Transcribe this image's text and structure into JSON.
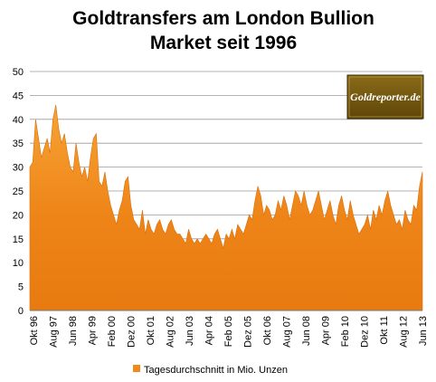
{
  "chart_data": {
    "type": "area",
    "title_line1": "Goldtransfers am London Bullion",
    "title_line2": "Market seit 1996",
    "ylim": [
      0,
      50
    ],
    "y_ticks": [
      "0",
      "5",
      "10",
      "15",
      "20",
      "25",
      "30",
      "35",
      "40",
      "45",
      "50"
    ],
    "x_tick_labels": [
      "Okt 96",
      "Aug 97",
      "Jun 98",
      "Apr 99",
      "Feb 00",
      "Dez 00",
      "Okt 01",
      "Aug 02",
      "Jun 03",
      "Apr 04",
      "Feb 05",
      "Dez 05",
      "Okt 06",
      "Aug 07",
      "Jun 08",
      "Apr 09",
      "Feb 10",
      "Dez 10",
      "Okt 11",
      "Aug 12",
      "Jun 13"
    ],
    "grid": true,
    "legend_position": "bottom",
    "series": [
      {
        "name": "Tagesdurchschnitt in Mio. Unzen",
        "color": "#f08a1c",
        "values": [
          30,
          31,
          40,
          36,
          32,
          34,
          36,
          33,
          40,
          43,
          38,
          35,
          37,
          33,
          30,
          29,
          35,
          31,
          28,
          30,
          27,
          32,
          36,
          37,
          27,
          26,
          29,
          25,
          22,
          20,
          18,
          21,
          23,
          27,
          28,
          22,
          19,
          18,
          17,
          21,
          16,
          19,
          17,
          16,
          18,
          19,
          17,
          16,
          18,
          19,
          17,
          16,
          16,
          15,
          14,
          17,
          15,
          14,
          15,
          14,
          15,
          16,
          15,
          14,
          16,
          17,
          15,
          13,
          16,
          15,
          17,
          15,
          18,
          17,
          16,
          18,
          20,
          19,
          23,
          26,
          24,
          20,
          22,
          21,
          19,
          20,
          23,
          21,
          24,
          22,
          19,
          22,
          25,
          24,
          22,
          25,
          22,
          20,
          21,
          23,
          25,
          22,
          19,
          21,
          23,
          20,
          18,
          22,
          24,
          21,
          19,
          23,
          20,
          18,
          16,
          17,
          18,
          20,
          17,
          21,
          19,
          22,
          20,
          23,
          25,
          22,
          20,
          18,
          19,
          17,
          21,
          19,
          18,
          22,
          21,
          26,
          29
        ]
      }
    ]
  },
  "logo": {
    "text": "Goldreporter.de"
  }
}
